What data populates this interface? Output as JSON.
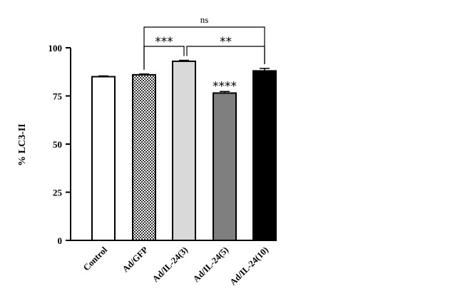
{
  "chart_data": {
    "type": "bar",
    "title": "",
    "xlabel": "",
    "ylabel": "% LC3-II",
    "ylim": [
      0,
      100
    ],
    "yticks": [
      0,
      25,
      50,
      75,
      100
    ],
    "categories": [
      "Control",
      "Ad/GFP",
      "Ad/IL-24(3)",
      "Ad/IL-24(5)",
      "Ad/IL-24(10)"
    ],
    "values": [
      85,
      86,
      93,
      76.5,
      88
    ],
    "errors": [
      0.4,
      0.4,
      0.5,
      0.8,
      1.3
    ],
    "fills": [
      "#ffffff",
      "checker",
      "#d9d9d9",
      "#7f7f7f",
      "#000000"
    ],
    "grid": false,
    "significance": [
      {
        "from": 1,
        "to": 2,
        "label": "***"
      },
      {
        "from": 2,
        "to": 4,
        "label": "**"
      },
      {
        "from": 1,
        "to": 4,
        "label": "ns"
      },
      {
        "bar": 3,
        "label": "****"
      }
    ]
  }
}
